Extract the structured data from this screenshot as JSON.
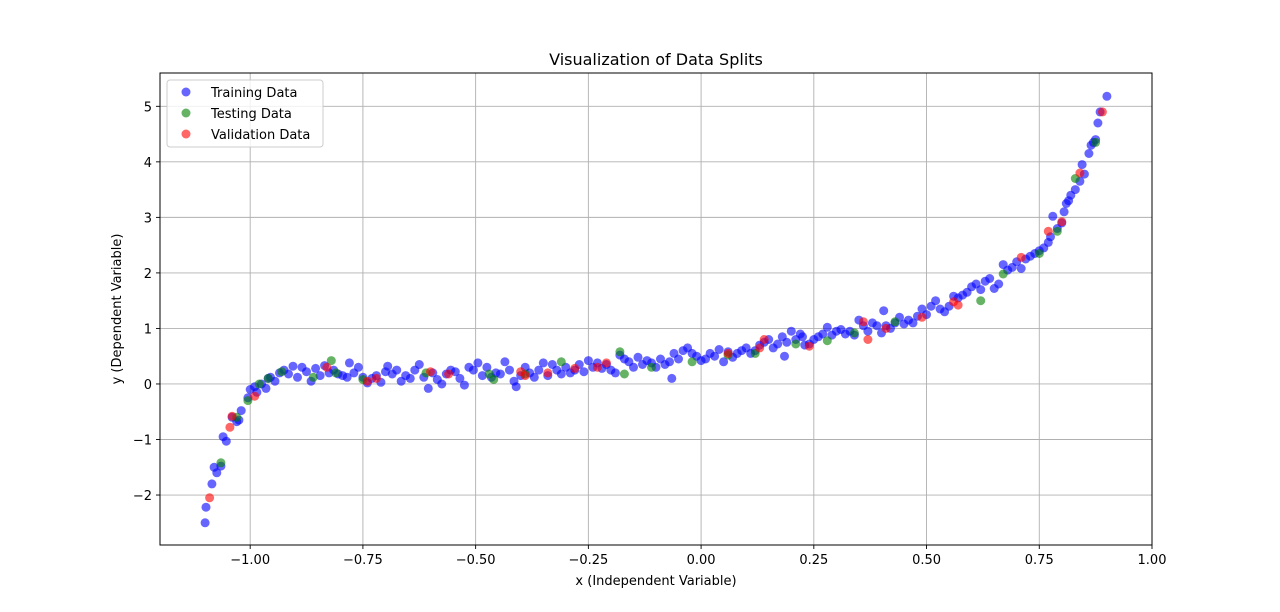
{
  "chart_data": {
    "type": "scatter",
    "title": "Visualization of Data Splits",
    "xlabel": "x (Independent Variable)",
    "ylabel": "y (Dependent Variable)",
    "xlim": [
      -1.2,
      1.0
    ],
    "ylim": [
      -2.9,
      5.6
    ],
    "x_ticks": [
      -1.0,
      -0.75,
      -0.5,
      -0.25,
      0.0,
      0.25,
      0.5,
      0.75,
      1.0
    ],
    "x_tick_labels": [
      "−1.00",
      "−0.75",
      "−0.50",
      "−0.25",
      "0.00",
      "0.25",
      "0.50",
      "0.75",
      "1.00"
    ],
    "y_ticks": [
      -2,
      -1,
      0,
      1,
      2,
      3,
      4,
      5
    ],
    "y_tick_labels": [
      "−2",
      "−1",
      "0",
      "1",
      "2",
      "3",
      "4",
      "5"
    ],
    "grid": true,
    "legend_position": "top-left",
    "series": [
      {
        "name": "Training Data",
        "color": "#0000ff",
        "points": [
          [
            -1.1,
            -2.5
          ],
          [
            -1.098,
            -2.22
          ],
          [
            -1.085,
            -1.8
          ],
          [
            -1.08,
            -1.5
          ],
          [
            -1.074,
            -1.6
          ],
          [
            -1.065,
            -1.48
          ],
          [
            -1.06,
            -0.95
          ],
          [
            -1.053,
            -1.03
          ],
          [
            -1.04,
            -0.6
          ],
          [
            -1.03,
            -0.68
          ],
          [
            -1.025,
            -0.65
          ],
          [
            -1.02,
            -0.48
          ],
          [
            -1.005,
            -0.25
          ],
          [
            -1.0,
            -0.1
          ],
          [
            -0.99,
            -0.05
          ],
          [
            -0.985,
            -0.15
          ],
          [
            -0.975,
            0.0
          ],
          [
            -0.965,
            -0.08
          ],
          [
            -0.96,
            0.1
          ],
          [
            -0.955,
            0.12
          ],
          [
            -0.945,
            0.05
          ],
          [
            -0.935,
            0.2
          ],
          [
            -0.925,
            0.25
          ],
          [
            -0.915,
            0.18
          ],
          [
            -0.905,
            0.32
          ],
          [
            -0.895,
            0.12
          ],
          [
            -0.885,
            0.3
          ],
          [
            -0.875,
            0.22
          ],
          [
            -0.865,
            0.05
          ],
          [
            -0.855,
            0.28
          ],
          [
            -0.845,
            0.15
          ],
          [
            -0.835,
            0.33
          ],
          [
            -0.825,
            0.2
          ],
          [
            -0.815,
            0.25
          ],
          [
            -0.805,
            0.18
          ],
          [
            -0.795,
            0.15
          ],
          [
            -0.785,
            0.12
          ],
          [
            -0.78,
            0.38
          ],
          [
            -0.77,
            0.2
          ],
          [
            -0.76,
            0.3
          ],
          [
            -0.75,
            0.12
          ],
          [
            -0.74,
            0.02
          ],
          [
            -0.73,
            0.1
          ],
          [
            -0.72,
            0.15
          ],
          [
            -0.71,
            0.03
          ],
          [
            -0.7,
            0.22
          ],
          [
            -0.695,
            0.32
          ],
          [
            -0.685,
            0.18
          ],
          [
            -0.675,
            0.25
          ],
          [
            -0.665,
            0.05
          ],
          [
            -0.655,
            0.15
          ],
          [
            -0.645,
            0.1
          ],
          [
            -0.635,
            0.25
          ],
          [
            -0.625,
            0.35
          ],
          [
            -0.615,
            0.12
          ],
          [
            -0.605,
            -0.08
          ],
          [
            -0.595,
            0.2
          ],
          [
            -0.585,
            0.08
          ],
          [
            -0.575,
            0.0
          ],
          [
            -0.565,
            0.18
          ],
          [
            -0.555,
            0.25
          ],
          [
            -0.545,
            0.22
          ],
          [
            -0.535,
            0.1
          ],
          [
            -0.525,
            -0.02
          ],
          [
            -0.515,
            0.3
          ],
          [
            -0.505,
            0.25
          ],
          [
            -0.495,
            0.38
          ],
          [
            -0.485,
            0.15
          ],
          [
            -0.475,
            0.3
          ],
          [
            -0.465,
            0.12
          ],
          [
            -0.455,
            0.2
          ],
          [
            -0.445,
            0.18
          ],
          [
            -0.435,
            0.4
          ],
          [
            -0.425,
            0.25
          ],
          [
            -0.415,
            0.05
          ],
          [
            -0.41,
            -0.05
          ],
          [
            -0.4,
            0.15
          ],
          [
            -0.39,
            0.3
          ],
          [
            -0.38,
            0.2
          ],
          [
            -0.37,
            0.12
          ],
          [
            -0.36,
            0.25
          ],
          [
            -0.35,
            0.38
          ],
          [
            -0.34,
            0.15
          ],
          [
            -0.33,
            0.35
          ],
          [
            -0.32,
            0.25
          ],
          [
            -0.31,
            0.18
          ],
          [
            -0.3,
            0.3
          ],
          [
            -0.29,
            0.2
          ],
          [
            -0.28,
            0.25
          ],
          [
            -0.27,
            0.35
          ],
          [
            -0.26,
            0.22
          ],
          [
            -0.25,
            0.42
          ],
          [
            -0.24,
            0.3
          ],
          [
            -0.23,
            0.38
          ],
          [
            -0.22,
            0.28
          ],
          [
            -0.21,
            0.35
          ],
          [
            -0.2,
            0.25
          ],
          [
            -0.19,
            0.2
          ],
          [
            -0.18,
            0.52
          ],
          [
            -0.17,
            0.45
          ],
          [
            -0.16,
            0.4
          ],
          [
            -0.15,
            0.3
          ],
          [
            -0.14,
            0.48
          ],
          [
            -0.13,
            0.35
          ],
          [
            -0.12,
            0.42
          ],
          [
            -0.11,
            0.38
          ],
          [
            -0.1,
            0.3
          ],
          [
            -0.09,
            0.45
          ],
          [
            -0.08,
            0.35
          ],
          [
            -0.07,
            0.4
          ],
          [
            -0.065,
            0.1
          ],
          [
            -0.06,
            0.55
          ],
          [
            -0.05,
            0.45
          ],
          [
            -0.04,
            0.6
          ],
          [
            -0.03,
            0.65
          ],
          [
            -0.02,
            0.55
          ],
          [
            -0.01,
            0.5
          ],
          [
            0.0,
            0.42
          ],
          [
            0.01,
            0.45
          ],
          [
            0.02,
            0.55
          ],
          [
            0.03,
            0.5
          ],
          [
            0.04,
            0.62
          ],
          [
            0.05,
            0.4
          ],
          [
            0.06,
            0.58
          ],
          [
            0.07,
            0.48
          ],
          [
            0.08,
            0.55
          ],
          [
            0.09,
            0.6
          ],
          [
            0.1,
            0.65
          ],
          [
            0.11,
            0.55
          ],
          [
            0.12,
            0.6
          ],
          [
            0.13,
            0.7
          ],
          [
            0.14,
            0.75
          ],
          [
            0.15,
            0.8
          ],
          [
            0.16,
            0.65
          ],
          [
            0.17,
            0.72
          ],
          [
            0.18,
            0.85
          ],
          [
            0.185,
            0.5
          ],
          [
            0.19,
            0.75
          ],
          [
            0.2,
            0.95
          ],
          [
            0.21,
            0.8
          ],
          [
            0.22,
            0.9
          ],
          [
            0.225,
            0.85
          ],
          [
            0.23,
            0.7
          ],
          [
            0.24,
            0.72
          ],
          [
            0.25,
            0.8
          ],
          [
            0.26,
            0.85
          ],
          [
            0.27,
            0.9
          ],
          [
            0.28,
            1.02
          ],
          [
            0.29,
            0.88
          ],
          [
            0.3,
            0.95
          ],
          [
            0.31,
            0.98
          ],
          [
            0.32,
            0.9
          ],
          [
            0.33,
            0.95
          ],
          [
            0.34,
            0.88
          ],
          [
            0.35,
            1.15
          ],
          [
            0.36,
            1.05
          ],
          [
            0.37,
            0.95
          ],
          [
            0.38,
            1.1
          ],
          [
            0.39,
            1.05
          ],
          [
            0.4,
            0.92
          ],
          [
            0.405,
            1.32
          ],
          [
            0.41,
            1.05
          ],
          [
            0.42,
            1.0
          ],
          [
            0.43,
            1.1
          ],
          [
            0.44,
            1.2
          ],
          [
            0.45,
            1.08
          ],
          [
            0.46,
            1.15
          ],
          [
            0.47,
            1.1
          ],
          [
            0.48,
            1.22
          ],
          [
            0.49,
            1.35
          ],
          [
            0.5,
            1.25
          ],
          [
            0.51,
            1.4
          ],
          [
            0.52,
            1.5
          ],
          [
            0.53,
            1.35
          ],
          [
            0.54,
            1.3
          ],
          [
            0.55,
            1.4
          ],
          [
            0.56,
            1.58
          ],
          [
            0.57,
            1.55
          ],
          [
            0.58,
            1.6
          ],
          [
            0.59,
            1.65
          ],
          [
            0.6,
            1.75
          ],
          [
            0.61,
            1.8
          ],
          [
            0.62,
            1.7
          ],
          [
            0.63,
            1.85
          ],
          [
            0.64,
            1.9
          ],
          [
            0.65,
            1.72
          ],
          [
            0.66,
            1.8
          ],
          [
            0.67,
            2.15
          ],
          [
            0.68,
            2.05
          ],
          [
            0.69,
            2.1
          ],
          [
            0.7,
            2.2
          ],
          [
            0.71,
            2.08
          ],
          [
            0.72,
            2.25
          ],
          [
            0.73,
            2.3
          ],
          [
            0.74,
            2.35
          ],
          [
            0.75,
            2.4
          ],
          [
            0.76,
            2.45
          ],
          [
            0.77,
            2.55
          ],
          [
            0.775,
            2.65
          ],
          [
            0.78,
            3.02
          ],
          [
            0.79,
            2.8
          ],
          [
            0.8,
            2.9
          ],
          [
            0.805,
            3.1
          ],
          [
            0.81,
            3.25
          ],
          [
            0.815,
            3.3
          ],
          [
            0.82,
            3.4
          ],
          [
            0.83,
            3.5
          ],
          [
            0.84,
            3.65
          ],
          [
            0.845,
            3.95
          ],
          [
            0.85,
            3.78
          ],
          [
            0.86,
            4.15
          ],
          [
            0.865,
            4.3
          ],
          [
            0.87,
            4.35
          ],
          [
            0.875,
            4.4
          ],
          [
            0.88,
            4.7
          ],
          [
            0.885,
            4.9
          ],
          [
            0.9,
            5.18
          ]
        ]
      },
      {
        "name": "Testing Data",
        "color": "#008000",
        "points": [
          [
            -1.065,
            -1.42
          ],
          [
            -1.03,
            -0.6
          ],
          [
            -1.005,
            -0.3
          ],
          [
            -0.98,
            0.0
          ],
          [
            -0.96,
            0.1
          ],
          [
            -0.93,
            0.22
          ],
          [
            -0.86,
            0.12
          ],
          [
            -0.82,
            0.42
          ],
          [
            -0.81,
            0.2
          ],
          [
            -0.75,
            0.08
          ],
          [
            -0.61,
            0.2
          ],
          [
            -0.47,
            0.18
          ],
          [
            -0.46,
            0.08
          ],
          [
            -0.39,
            0.18
          ],
          [
            -0.31,
            0.4
          ],
          [
            -0.18,
            0.58
          ],
          [
            -0.17,
            0.18
          ],
          [
            -0.11,
            0.3
          ],
          [
            -0.02,
            0.4
          ],
          [
            0.06,
            0.52
          ],
          [
            0.12,
            0.55
          ],
          [
            0.21,
            0.72
          ],
          [
            0.28,
            0.78
          ],
          [
            0.34,
            0.92
          ],
          [
            0.43,
            1.12
          ],
          [
            0.62,
            1.5
          ],
          [
            0.67,
            1.98
          ],
          [
            0.75,
            2.35
          ],
          [
            0.79,
            2.75
          ],
          [
            0.83,
            3.7
          ],
          [
            0.875,
            4.35
          ]
        ]
      },
      {
        "name": "Validation Data",
        "color": "#ff0000",
        "points": [
          [
            -1.09,
            -2.05
          ],
          [
            -1.045,
            -0.78
          ],
          [
            -1.04,
            -0.58
          ],
          [
            -0.99,
            -0.22
          ],
          [
            -0.83,
            0.3
          ],
          [
            -0.74,
            0.05
          ],
          [
            -0.72,
            0.1
          ],
          [
            -0.6,
            0.22
          ],
          [
            -0.56,
            0.18
          ],
          [
            -0.4,
            0.22
          ],
          [
            -0.39,
            0.15
          ],
          [
            -0.34,
            0.2
          ],
          [
            -0.28,
            0.28
          ],
          [
            -0.23,
            0.3
          ],
          [
            -0.21,
            0.38
          ],
          [
            0.06,
            0.55
          ],
          [
            0.13,
            0.65
          ],
          [
            0.14,
            0.8
          ],
          [
            0.24,
            0.68
          ],
          [
            0.36,
            1.12
          ],
          [
            0.37,
            0.8
          ],
          [
            0.41,
            1.0
          ],
          [
            0.49,
            1.2
          ],
          [
            0.56,
            1.48
          ],
          [
            0.57,
            1.42
          ],
          [
            0.71,
            2.28
          ],
          [
            0.77,
            2.75
          ],
          [
            0.8,
            2.92
          ],
          [
            0.84,
            3.8
          ],
          [
            0.89,
            4.9
          ]
        ]
      }
    ]
  }
}
